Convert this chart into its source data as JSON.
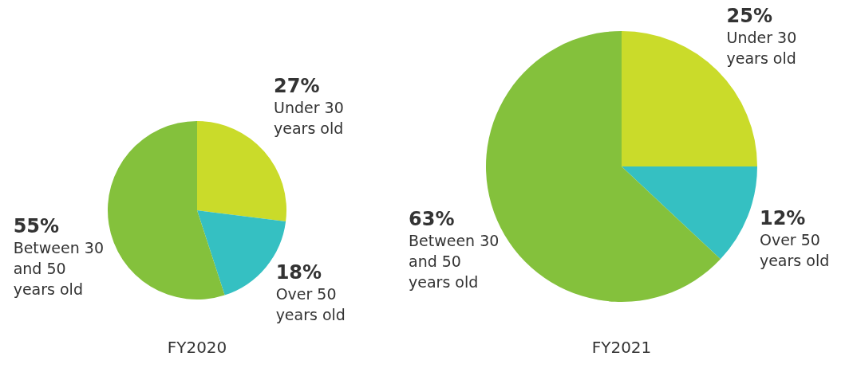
{
  "chart_data": [
    {
      "type": "pie",
      "title": "FY2020",
      "categories": [
        "Under 30 years old",
        "Over 50 years old",
        "Between 30 and 50 years old"
      ],
      "values": [
        27,
        18,
        55
      ],
      "value_labels": [
        "27%",
        "18%",
        "55%"
      ],
      "colors": [
        "#cadb2a",
        "#35c0c2",
        "#84c13c"
      ],
      "legend": false
    },
    {
      "type": "pie",
      "title": "FY2021",
      "categories": [
        "Under 30 years old",
        "Over 50 years old",
        "Between 30 and 50 years old"
      ],
      "values": [
        25,
        12,
        63
      ],
      "value_labels": [
        "25%",
        "12%",
        "63%"
      ],
      "colors": [
        "#cadb2a",
        "#35c0c2",
        "#84c13c"
      ],
      "legend": false
    }
  ]
}
